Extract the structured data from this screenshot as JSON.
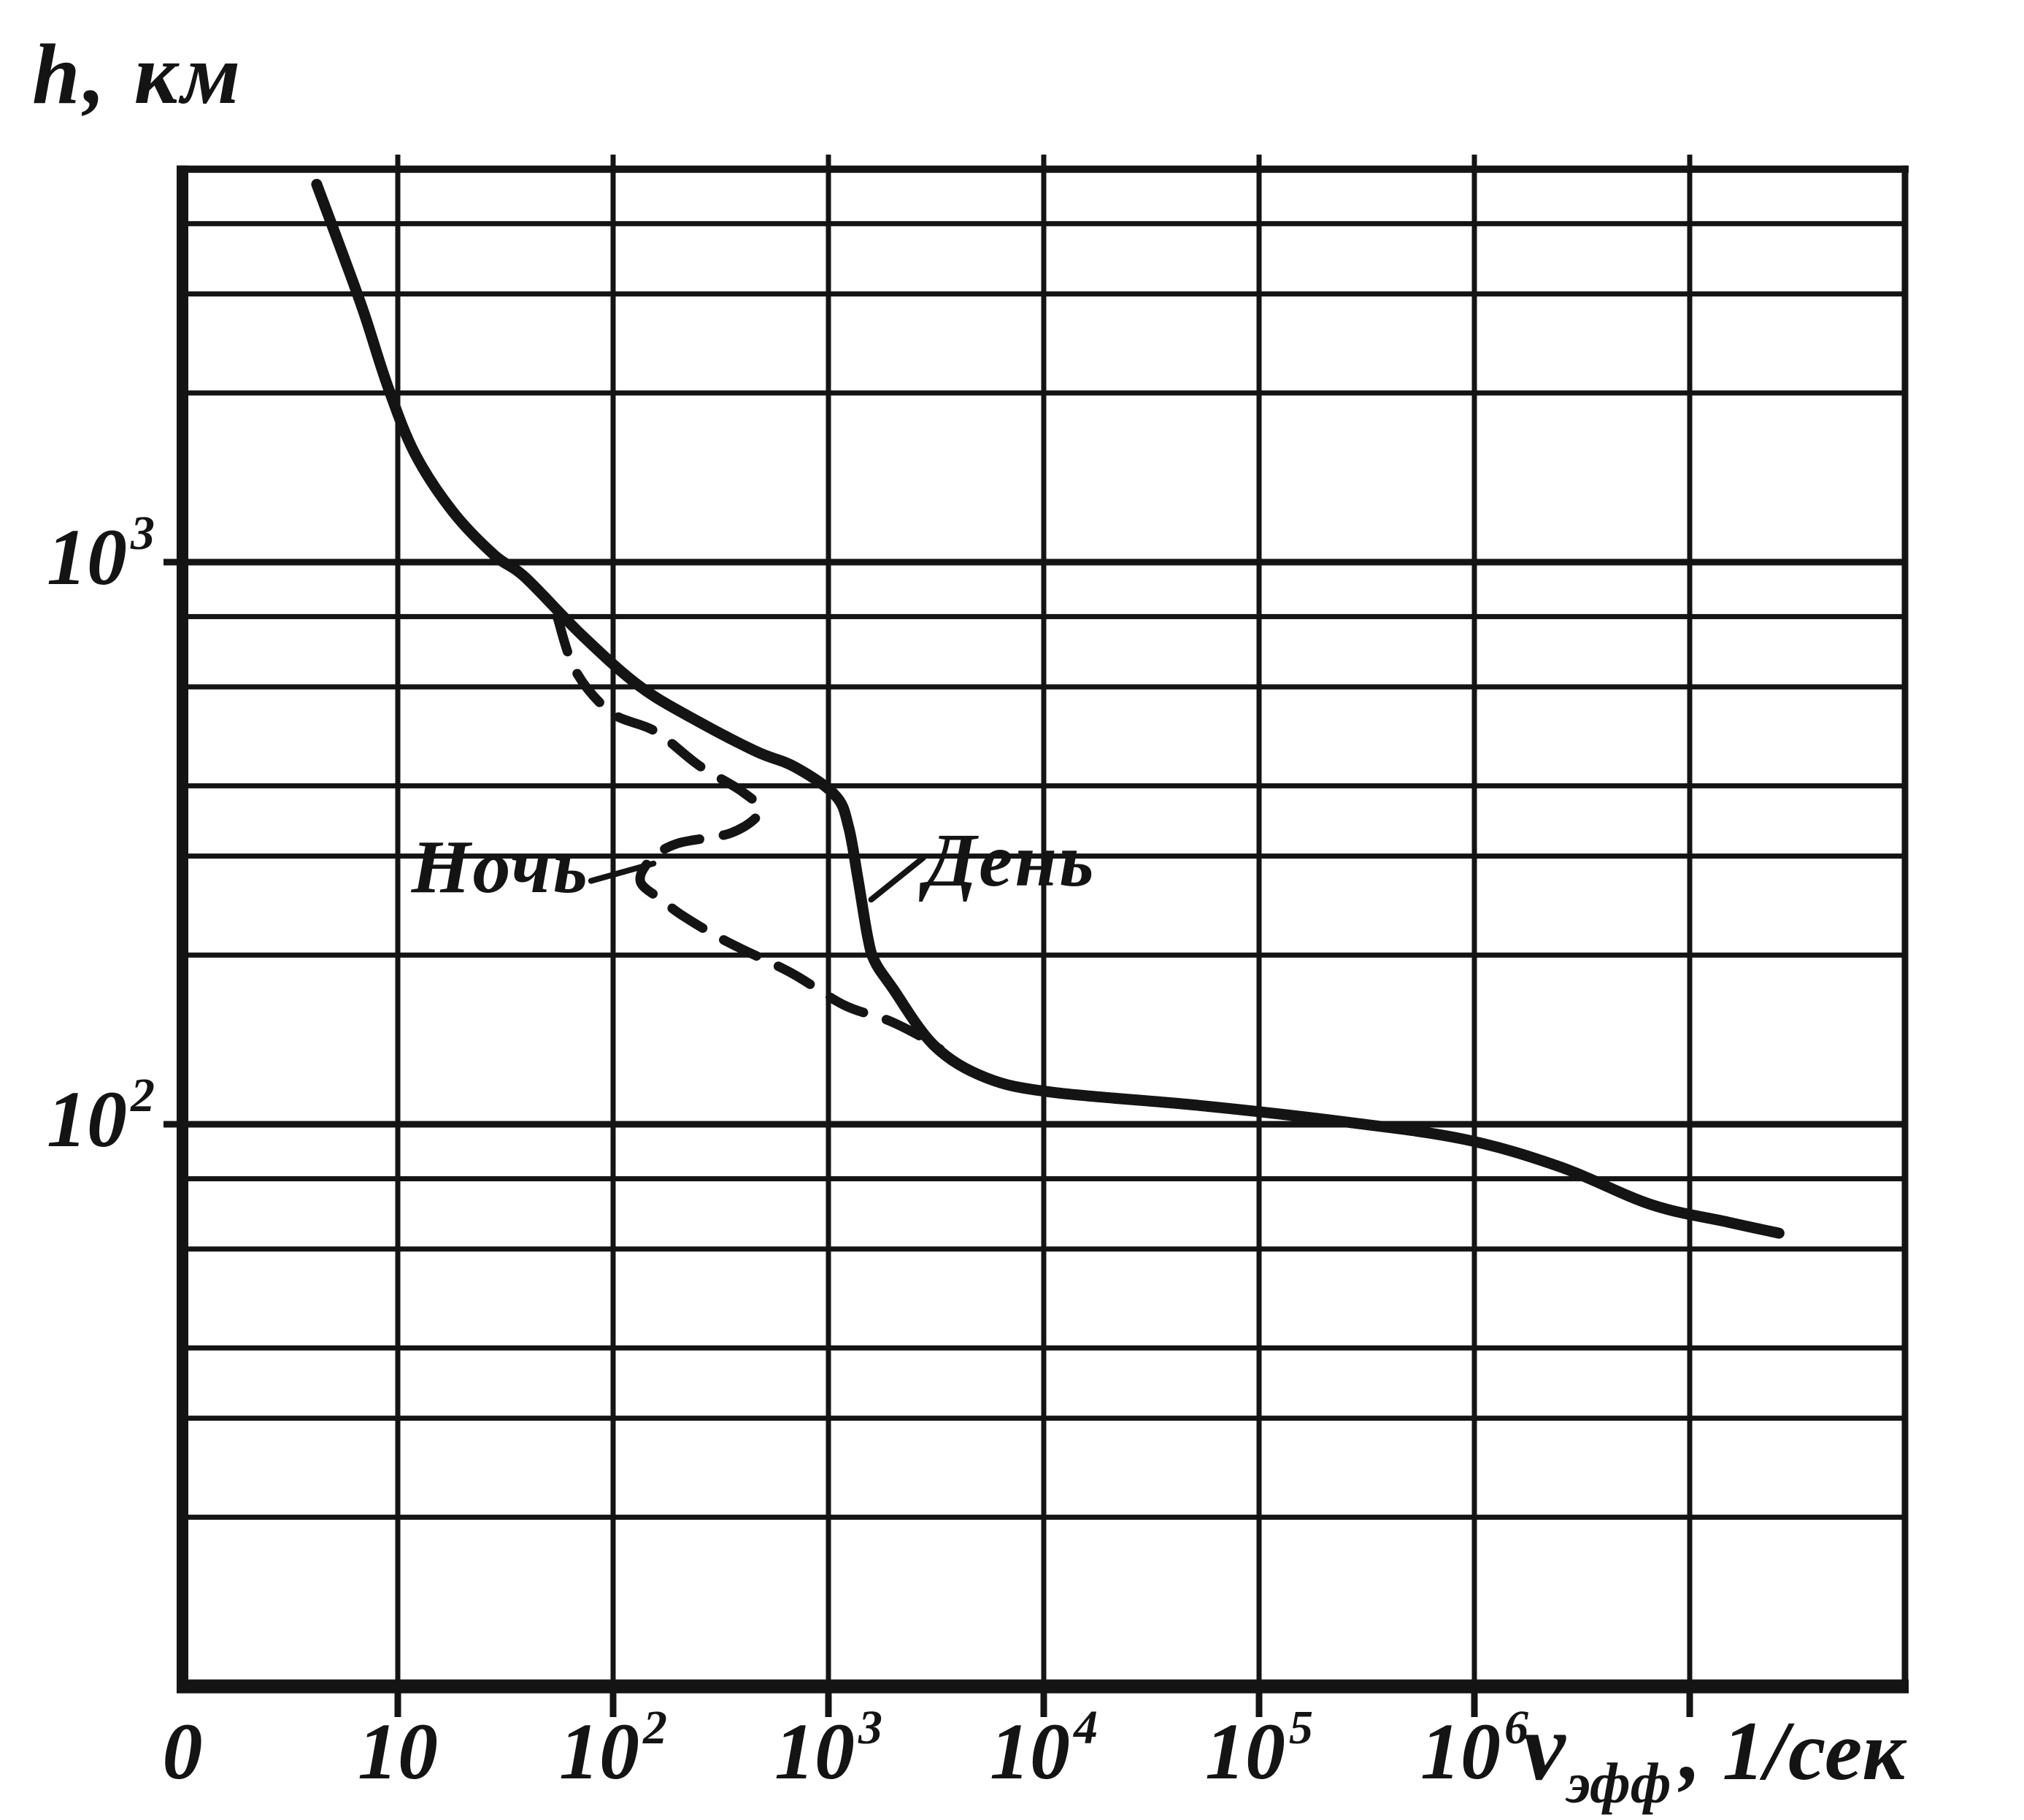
{
  "figure": {
    "background": "#ffffff",
    "ink_color": "#141414"
  },
  "y_axis": {
    "label": "h, км",
    "ticks": [
      {
        "text": "10",
        "sup": "3",
        "value": 1000
      },
      {
        "text": "10",
        "sup": "2",
        "value": 100
      }
    ]
  },
  "x_axis": {
    "label": {
      "symbol": "ν",
      "subscript": "эфф",
      "unit": ", 1/сек"
    },
    "ticks": [
      {
        "text": "0",
        "sup": "",
        "value": 1
      },
      {
        "text": "10",
        "sup": "",
        "value": 10
      },
      {
        "text": "10",
        "sup": "2",
        "value": 100
      },
      {
        "text": "10",
        "sup": "3",
        "value": 1000
      },
      {
        "text": "10",
        "sup": "4",
        "value": 10000
      },
      {
        "text": "10",
        "sup": "5",
        "value": 100000
      },
      {
        "text": "10",
        "sup": "6",
        "value": 1000000
      }
    ]
  },
  "annotations": [
    {
      "id": "night",
      "text": "Ночь",
      "label_at": [
        30,
        285
      ],
      "leader": [
        [
          79,
          271
        ],
        [
          154,
          291
        ]
      ]
    },
    {
      "id": "day",
      "text": "День",
      "label_at": [
        7000,
        293
      ],
      "leader": [
        [
          2760,
          298
        ],
        [
          1580,
          251
        ]
      ]
    }
  ],
  "chart_data": {
    "type": "line",
    "title": "",
    "xlabel": "ν_эфф, 1/сек",
    "ylabel": "h, км",
    "x_scale": "log",
    "y_scale": "log",
    "x_range": [
      1,
      100000000
    ],
    "y_range": [
      10,
      5000
    ],
    "x_tick_values": [
      1,
      10,
      100,
      1000,
      10000,
      100000,
      1000000
    ],
    "x_grid_decades": [
      10,
      100,
      1000,
      10000,
      100000,
      1000000,
      10000000
    ],
    "y_tick_values": [
      100,
      1000
    ],
    "y_minor_multiples": [
      2,
      3,
      4,
      6,
      8
    ],
    "grid": "both",
    "legend_position": "inline-labels",
    "series": [
      {
        "name": "День",
        "style": "solid",
        "points": [
          [
            4.2,
            4700
          ],
          [
            5.6,
            3500
          ],
          [
            7,
            2760
          ],
          [
            9,
            2050
          ],
          [
            12,
            1560
          ],
          [
            18,
            1230
          ],
          [
            28,
            1030
          ],
          [
            39,
            940
          ],
          [
            72,
            740
          ],
          [
            134,
            600
          ],
          [
            250,
            520
          ],
          [
            465,
            460
          ],
          [
            700,
            432
          ],
          [
            1080,
            384
          ],
          [
            1240,
            338
          ],
          [
            1370,
            274
          ],
          [
            1520,
            216
          ],
          [
            1640,
            195
          ],
          [
            1980,
            175
          ],
          [
            3100,
            138
          ],
          [
            5400,
            121
          ],
          [
            11000,
            114
          ],
          [
            53000,
            108
          ],
          [
            250000,
            101
          ],
          [
            900000,
            94
          ],
          [
            2500000,
            84
          ],
          [
            6600000,
            72
          ],
          [
            15000000,
            67
          ],
          [
            26000000,
            64
          ]
        ]
      },
      {
        "name": "Ночь",
        "style": "dashed",
        "points": [
          [
            55,
            800
          ],
          [
            67,
            640
          ],
          [
            98,
            540
          ],
          [
            157,
            500
          ],
          [
            250,
            435
          ],
          [
            400,
            390
          ],
          [
            480,
            360
          ],
          [
            355,
            330
          ],
          [
            200,
            316
          ],
          [
            150,
            296
          ],
          [
            134,
            270
          ],
          [
            170,
            250
          ],
          [
            214,
            234
          ],
          [
            340,
            211
          ],
          [
            670,
            186
          ],
          [
            1180,
            163
          ],
          [
            1900,
            153
          ],
          [
            2800,
            142
          ],
          [
            3300,
            136
          ]
        ]
      }
    ]
  }
}
